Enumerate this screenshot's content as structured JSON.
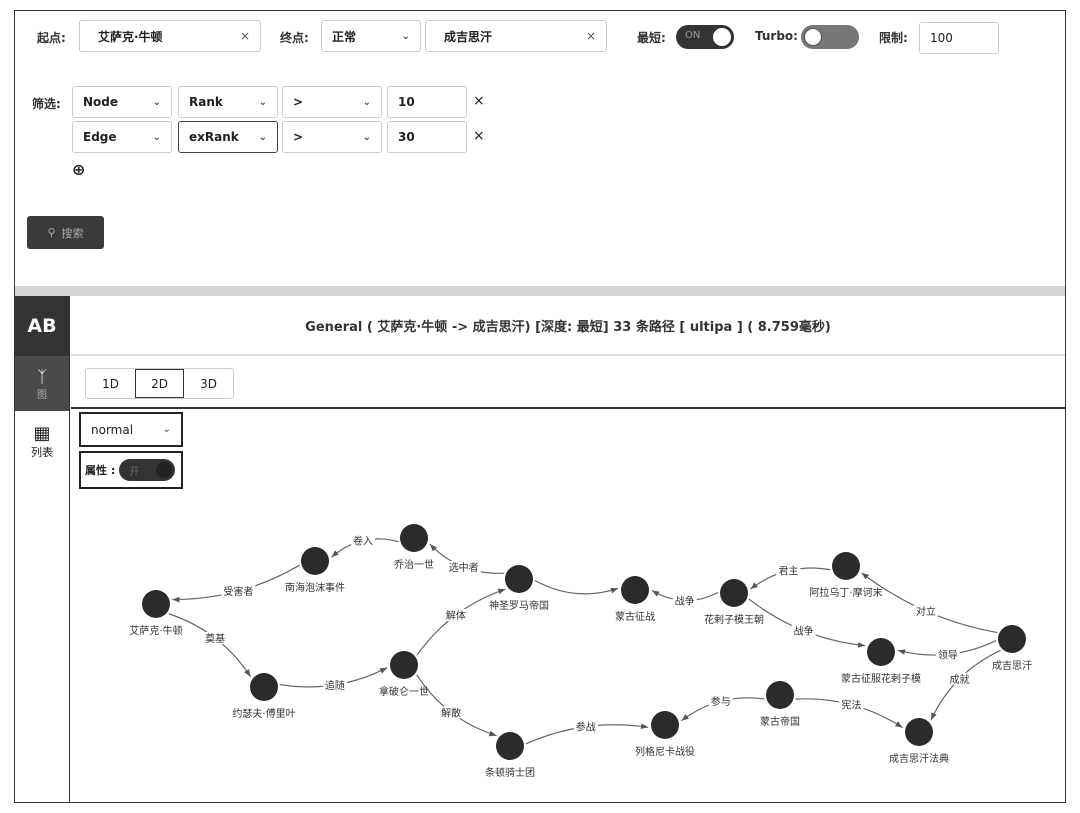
{
  "query": {
    "start_label": "起点:",
    "start_value": "艾萨克·牛顿",
    "end_label": "终点:",
    "end_mode": "正常",
    "end_value": "成吉思汗",
    "shortest_label": "最短:",
    "shortest_state": "ON",
    "shortest_on": true,
    "turbo_label": "Turbo:",
    "turbo_on": false,
    "limit_label": "限制:",
    "limit_value": "100",
    "filter_label": "筛选:",
    "filters": [
      {
        "type": "Node",
        "field": "Rank",
        "op": ">",
        "value": "10"
      },
      {
        "type": "Edge",
        "field": "exRank",
        "op": ">",
        "value": "30"
      }
    ],
    "search_label": "搜索"
  },
  "sidebar": {
    "ab": "AB",
    "graph_label": "图",
    "list_label": "列表"
  },
  "result": {
    "title": "General ( 艾萨克·牛顿 -> 成吉思汗) [深度: 最短] 33 条路径 [ ultipa ] ( 8.759毫秒)"
  },
  "view_tabs": [
    {
      "label": "1D"
    },
    {
      "label": "2D",
      "active": true
    },
    {
      "label": "3D"
    }
  ],
  "layout_mode": "normal",
  "attr_label": "属性 :",
  "attr_toggle_text": "开",
  "graph": {
    "nodes": [
      "艾萨克·牛顿",
      "南海泡沫事件",
      "乔治一世",
      "神圣罗马帝国",
      "蒙古征战",
      "花剌子模王朝",
      "阿拉乌丁·摩诃末",
      "成吉思汗",
      "蒙古征服花剌子模",
      "约瑟夫·傅里叶",
      "拿破仑一世",
      "条顿骑士团",
      "列格尼卡战役",
      "蒙古帝国",
      "成吉思汗法典"
    ],
    "edges": [
      {
        "from": "南海泡沫事件",
        "to": "艾萨克·牛顿",
        "label": "受害者"
      },
      {
        "from": "乔治一世",
        "to": "南海泡沫事件",
        "label": "卷入"
      },
      {
        "from": "神圣罗马帝国",
        "to": "乔治一世",
        "label": "选中者"
      },
      {
        "from": "神圣罗马帝国",
        "to": "蒙古征战",
        "label": ""
      },
      {
        "from": "花剌子模王朝",
        "to": "蒙古征战",
        "label": "战争"
      },
      {
        "from": "阿拉乌丁·摩诃末",
        "to": "花剌子模王朝",
        "label": "君主"
      },
      {
        "from": "成吉思汗",
        "to": "阿拉乌丁·摩诃末",
        "label": "对立"
      },
      {
        "from": "花剌子模王朝",
        "to": "蒙古征服花剌子模",
        "label": "战争"
      },
      {
        "from": "成吉思汗",
        "to": "蒙古征服花剌子模",
        "label": "领导"
      },
      {
        "from": "成吉思汗",
        "to": "成吉思汗法典",
        "label": "成就"
      },
      {
        "from": "蒙古帝国",
        "to": "成吉思汗法典",
        "label": "宪法"
      },
      {
        "from": "蒙古帝国",
        "to": "列格尼卡战役",
        "label": "参与"
      },
      {
        "from": "条顿骑士团",
        "to": "列格尼卡战役",
        "label": "参战"
      },
      {
        "from": "拿破仑一世",
        "to": "条顿骑士团",
        "label": "解散"
      },
      {
        "from": "拿破仑一世",
        "to": "神圣罗马帝国",
        "label": "解体"
      },
      {
        "from": "约瑟夫·傅里叶",
        "to": "拿破仑一世",
        "label": "追随"
      },
      {
        "from": "艾萨克·牛顿",
        "to": "约瑟夫·傅里叶",
        "label": "奠基"
      }
    ]
  },
  "colors": {
    "node": "#2b2b2b",
    "dark": "#333333"
  }
}
